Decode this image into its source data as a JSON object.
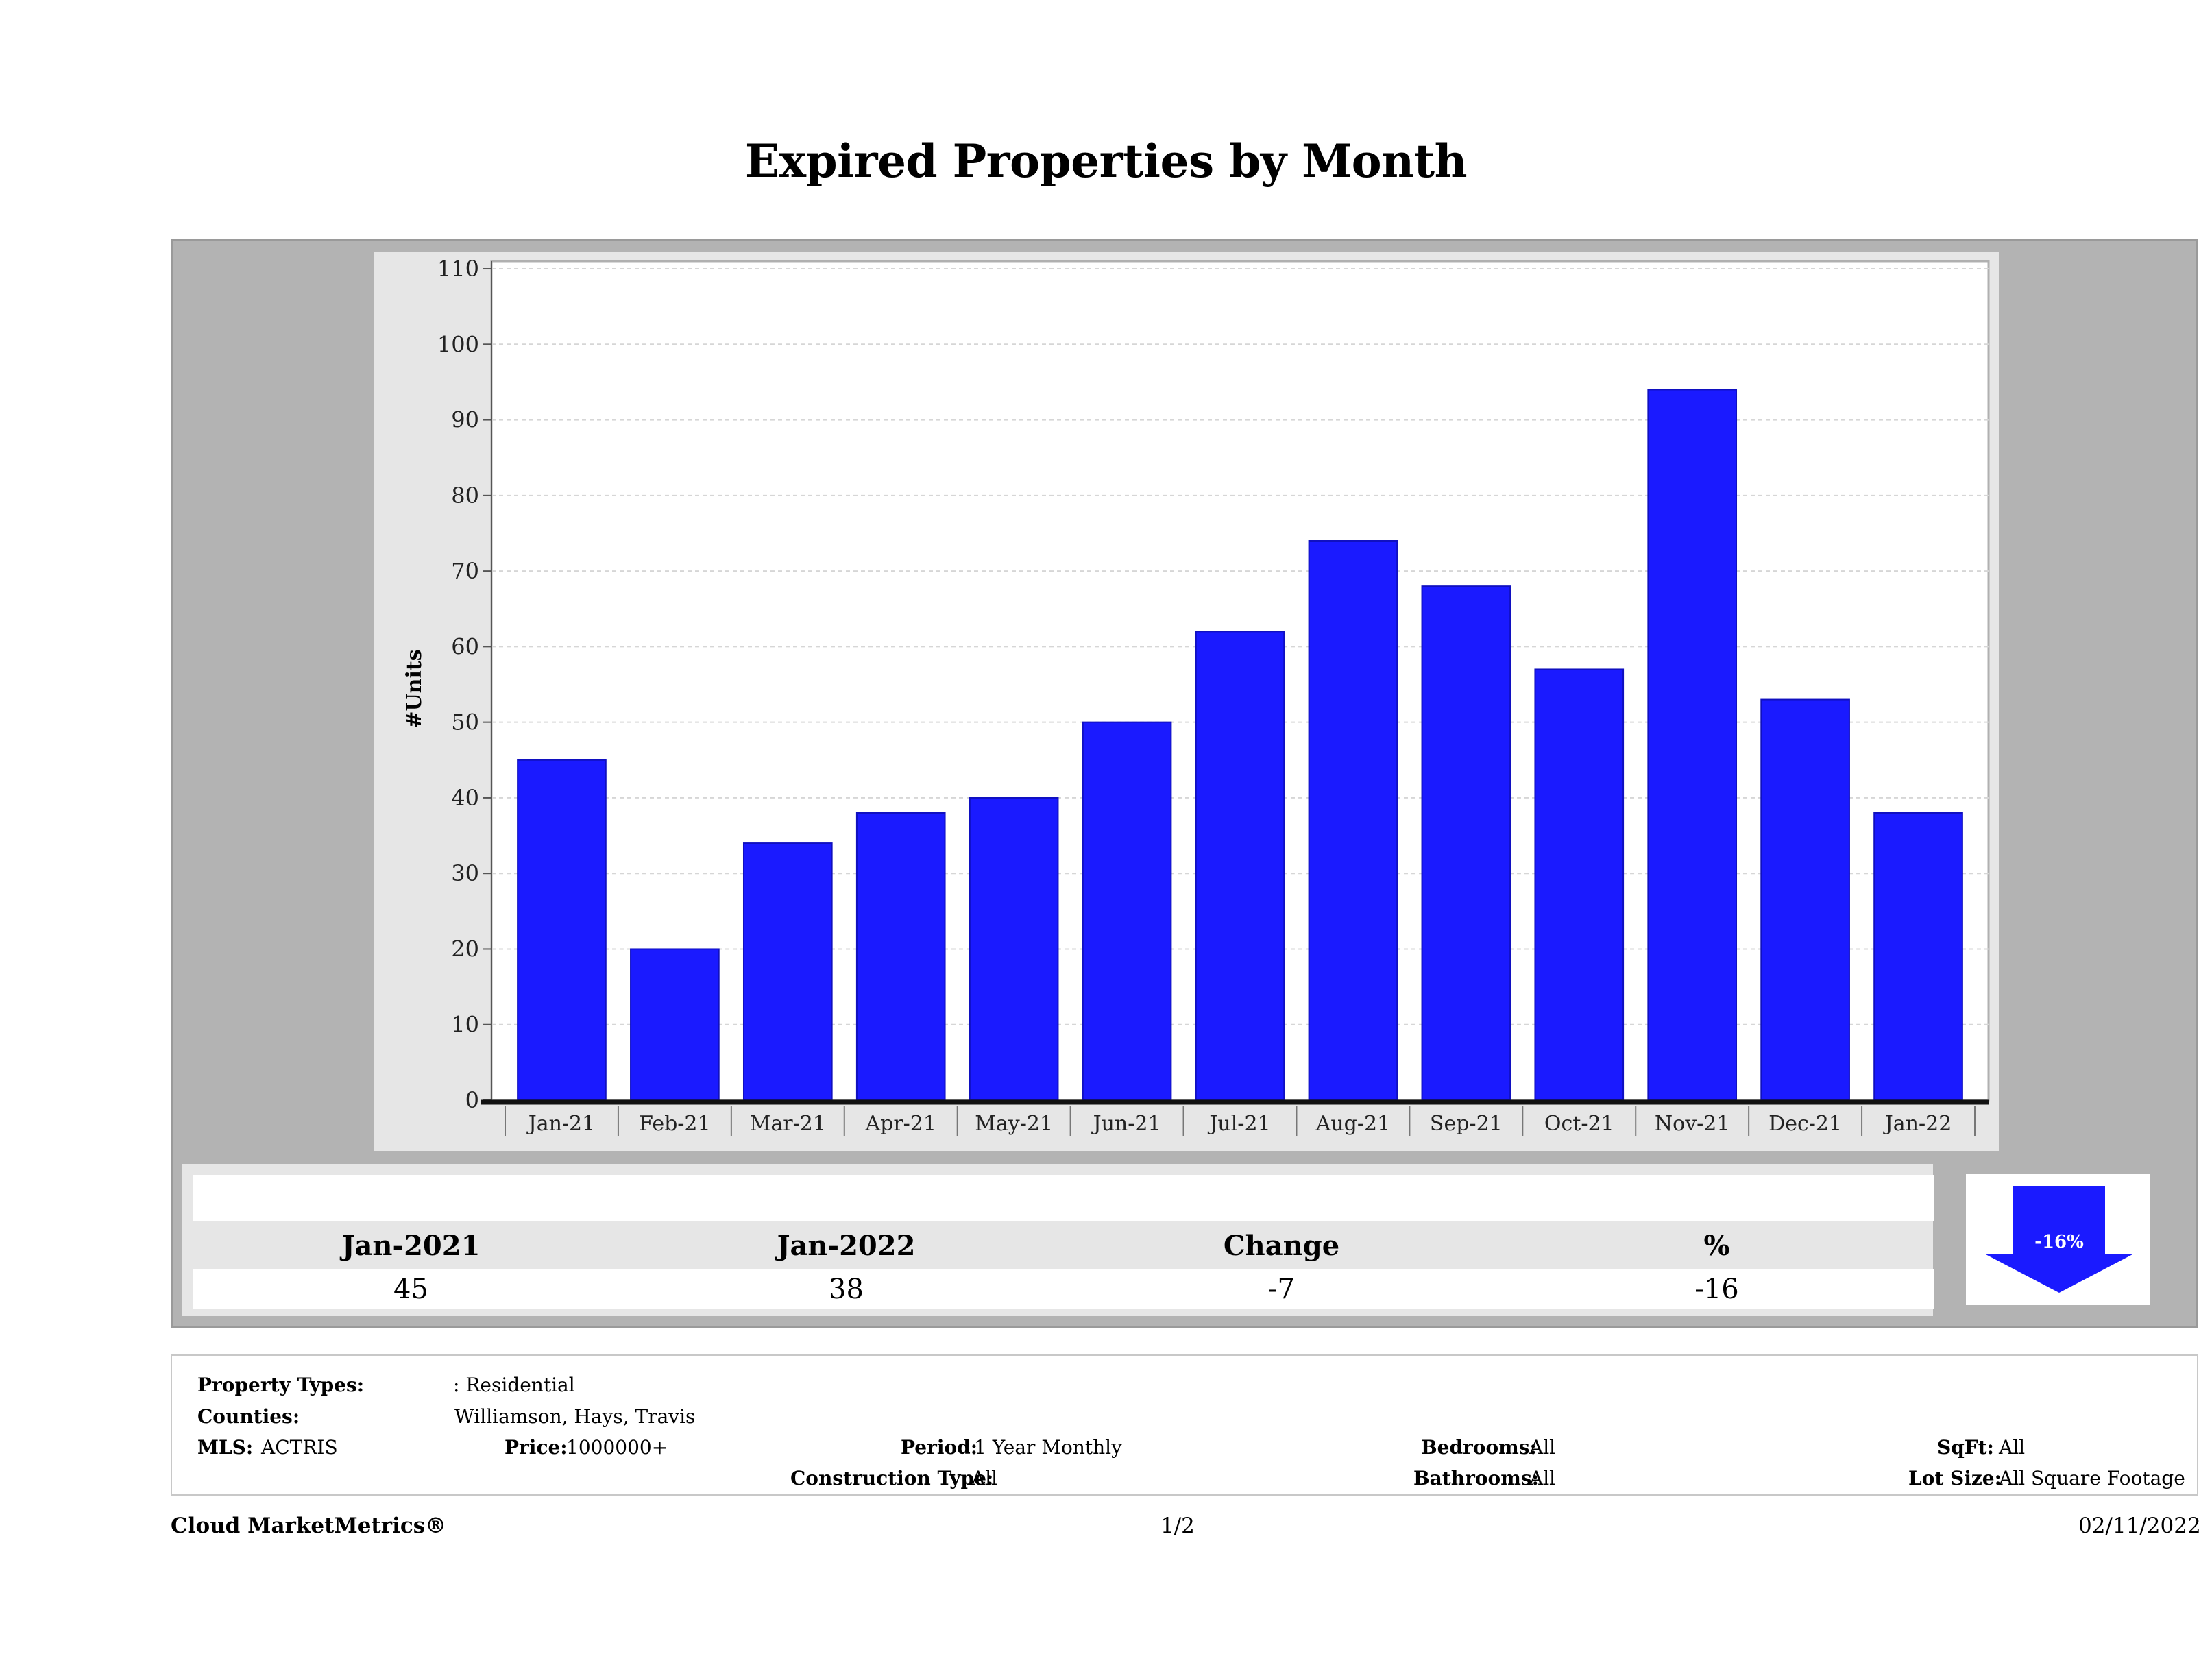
{
  "title": "Expired Properties by Month",
  "chart_data": {
    "type": "bar",
    "categories": [
      "Jan-21",
      "Feb-21",
      "Mar-21",
      "Apr-21",
      "May-21",
      "Jun-21",
      "Jul-21",
      "Aug-21",
      "Sep-21",
      "Oct-21",
      "Nov-21",
      "Dec-21",
      "Jan-22"
    ],
    "values": [
      45,
      20,
      34,
      38,
      40,
      50,
      62,
      74,
      68,
      57,
      94,
      53,
      38
    ],
    "ylabel": "#Units",
    "xlabel": "",
    "ylim": [
      0,
      110
    ],
    "yticks": [
      0,
      10,
      20,
      30,
      40,
      50,
      60,
      70,
      80,
      90,
      100,
      110
    ],
    "bar_color": "#1a1aff",
    "grid": true
  },
  "stats": {
    "headers": [
      "Jan-2021",
      "Jan-2022",
      "Change",
      "%"
    ],
    "values": [
      "45",
      "38",
      "-7",
      "-16"
    ],
    "indicator": {
      "label": "-16%",
      "direction": "down",
      "icon": "down-arrow-icon",
      "color": "#1a1aff"
    }
  },
  "filters": {
    "property_types_label": "Property Types:",
    "property_types_value": ": Residential",
    "counties_label": "Counties:",
    "counties_value": "Williamson, Hays, Travis",
    "mls_label": "MLS:",
    "mls_value": "ACTRIS",
    "price_label": "Price:",
    "price_value": "1000000+",
    "period_label": "Period:",
    "period_value": "1 Year Monthly",
    "construction_label": "Construction Type:",
    "construction_value": "All",
    "bedrooms_label": "Bedrooms:",
    "bedrooms_value": "All",
    "bathrooms_label": "Bathrooms:",
    "bathrooms_value": "All",
    "sqft_label": "SqFt:",
    "sqft_value": "All",
    "lotsize_label": "Lot Size:",
    "lotsize_value": "All Square Footage"
  },
  "footer": {
    "brand": "Cloud MarketMetrics®",
    "page": "1/2",
    "date": "02/11/2022"
  }
}
